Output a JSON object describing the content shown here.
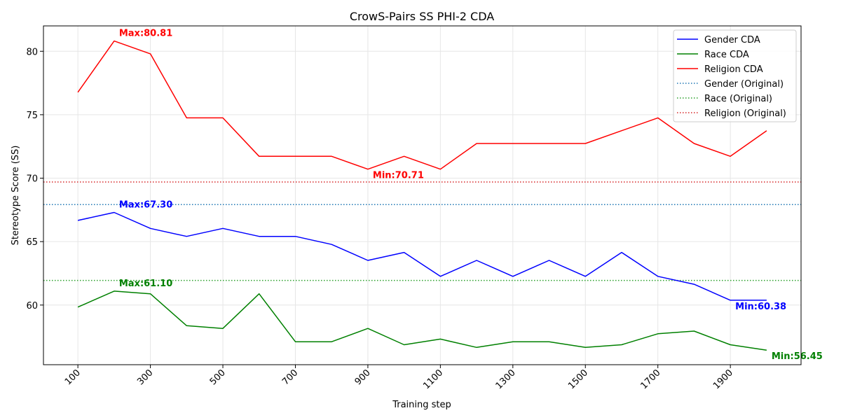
{
  "chart_data": {
    "type": "line",
    "title": "CrowS-Pairs SS PHI-2 CDA",
    "xlabel": "Training step",
    "ylabel": "Stereotype Score (SS)",
    "x": [
      100,
      200,
      300,
      400,
      500,
      600,
      700,
      800,
      900,
      1000,
      1100,
      1200,
      1300,
      1400,
      1500,
      1600,
      1700,
      1800,
      1900,
      2000
    ],
    "xticks": [
      100,
      300,
      500,
      700,
      900,
      1100,
      1300,
      1500,
      1700,
      1900
    ],
    "xtick_labels": [
      "100",
      "300",
      "500",
      "700",
      "900",
      "1100",
      "1300",
      "1500",
      "1700",
      "1900"
    ],
    "yticks": [
      60,
      65,
      70,
      75,
      80
    ],
    "ytick_labels": [
      "60",
      "65",
      "70",
      "75",
      "80"
    ],
    "xlim": [
      5,
      2095
    ],
    "ylim": [
      55.3,
      82.0
    ],
    "grid": true,
    "legend_position": "top-right",
    "series": [
      {
        "name": "Gender CDA",
        "color": "#0000ff",
        "style": "solid",
        "values": [
          66.67,
          67.3,
          66.04,
          65.41,
          66.04,
          65.41,
          65.41,
          64.78,
          63.52,
          64.15,
          62.26,
          63.52,
          62.26,
          63.52,
          62.26,
          64.15,
          62.26,
          61.64,
          60.38,
          60.38
        ]
      },
      {
        "name": "Race CDA",
        "color": "#008000",
        "style": "solid",
        "values": [
          59.84,
          61.1,
          60.89,
          58.37,
          58.16,
          60.89,
          57.11,
          57.11,
          58.16,
          56.87,
          57.32,
          56.66,
          57.11,
          57.11,
          56.66,
          56.87,
          57.74,
          57.95,
          56.87,
          56.45
        ]
      },
      {
        "name": "Religion CDA",
        "color": "#ff0000",
        "style": "solid",
        "values": [
          76.77,
          80.81,
          79.8,
          74.75,
          74.75,
          71.72,
          71.72,
          71.72,
          70.71,
          71.72,
          70.71,
          72.73,
          72.73,
          72.73,
          72.73,
          73.74,
          74.75,
          72.73,
          71.72,
          73.74
        ]
      },
      {
        "name": "Gender (Original)",
        "color": "#1f77b4",
        "style": "dotted",
        "hline": 67.92
      },
      {
        "name": "Race (Original)",
        "color": "#2ca02c",
        "style": "dotted",
        "hline": 61.94
      },
      {
        "name": "Religion (Original)",
        "color": "#d62728",
        "style": "dotted",
        "hline": 69.7
      }
    ],
    "annotations": [
      {
        "text": "Max:80.81",
        "x": 200,
        "y": 80.81,
        "color": "#ff0000",
        "anchor": "above"
      },
      {
        "text": "Min:70.71",
        "x": 900,
        "y": 70.71,
        "color": "#ff0000",
        "anchor": "below"
      },
      {
        "text": "Max:67.30",
        "x": 200,
        "y": 67.3,
        "color": "#0000ff",
        "anchor": "above"
      },
      {
        "text": "Min:60.38",
        "x": 1900,
        "y": 60.38,
        "color": "#0000ff",
        "anchor": "below"
      },
      {
        "text": "Max:61.10",
        "x": 200,
        "y": 61.1,
        "color": "#008000",
        "anchor": "above"
      },
      {
        "text": "Min:56.45",
        "x": 2000,
        "y": 56.45,
        "color": "#008000",
        "anchor": "below"
      }
    ]
  }
}
